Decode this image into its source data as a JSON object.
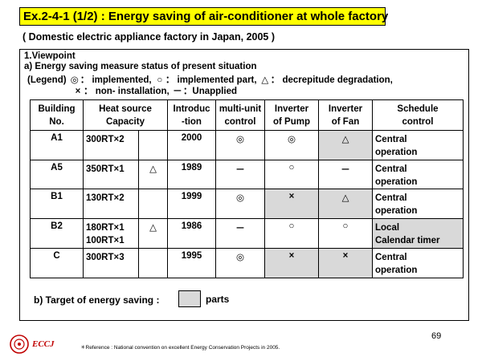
{
  "title": "Ex.2-4-1 (1/2) : Energy saving of air-conditioner at whole factory",
  "subtitle": "( Domestic electric appliance factory in Japan, 2005 )",
  "viewpoint": "1.Viewpoint",
  "measure_status": "a) Energy saving measure status of present situation",
  "legend": {
    "prefix": "(Legend)",
    "implemented": "implemented,",
    "implemented_part": "implemented part,",
    "decrepitude": "decrepitude degradation,",
    "non_installation": "non- installation,",
    "unapplied": "Unapplied",
    "sym_double_circle": "◎",
    "sym_circle": "○",
    "sym_triangle": "△",
    "sym_cross": "×",
    "sym_dash": "－",
    "colon": "："
  },
  "table": {
    "headers": {
      "building": [
        "Building",
        "No."
      ],
      "heat_source": [
        "Heat source",
        "Capacity"
      ],
      "introduction": [
        "Introduc",
        "-tion"
      ],
      "multi_unit": [
        "multi-unit",
        "control"
      ],
      "inverter_pump": [
        "Inverter",
        "of Pump"
      ],
      "inverter_fan": [
        "Inverter",
        "of Fan"
      ],
      "schedule": [
        "Schedule",
        "control"
      ]
    },
    "rows": [
      {
        "building": "A1",
        "capacity": [
          "300RT×2"
        ],
        "cap_mark": "",
        "intro": "2000",
        "multi": "◎",
        "pump": "◎",
        "fan": "△",
        "schedule": [
          "Central",
          "operation"
        ]
      },
      {
        "building": "A5",
        "capacity": [
          "350RT×1"
        ],
        "cap_mark": "△",
        "intro": "1989",
        "multi": "－",
        "pump": "○",
        "fan": "－",
        "schedule": [
          "Central",
          "operation"
        ]
      },
      {
        "building": "B1",
        "capacity": [
          "130RT×2"
        ],
        "cap_mark": "",
        "intro": "1999",
        "multi": "◎",
        "pump": "×",
        "fan": "△",
        "schedule": [
          "Central",
          "operation"
        ]
      },
      {
        "building": "B2",
        "capacity": [
          "180RT×1",
          "100RT×1"
        ],
        "cap_mark": "△",
        "intro": "1986",
        "multi": "－",
        "pump": "○",
        "fan": "○",
        "schedule": [
          "Local",
          "Calendar timer"
        ]
      },
      {
        "building": "C",
        "capacity": [
          "300RT×3"
        ],
        "cap_mark": "",
        "intro": "1995",
        "multi": "◎",
        "pump": "×",
        "fan": "×",
        "schedule": [
          "Central",
          "operation"
        ]
      }
    ]
  },
  "target_label": "b) Target of energy saving :",
  "target_parts": "parts",
  "page_number": "69",
  "logo_text": "ECCJ",
  "reference": "＊Reference : National convention on excellent Energy Conservation Projects in 2005."
}
